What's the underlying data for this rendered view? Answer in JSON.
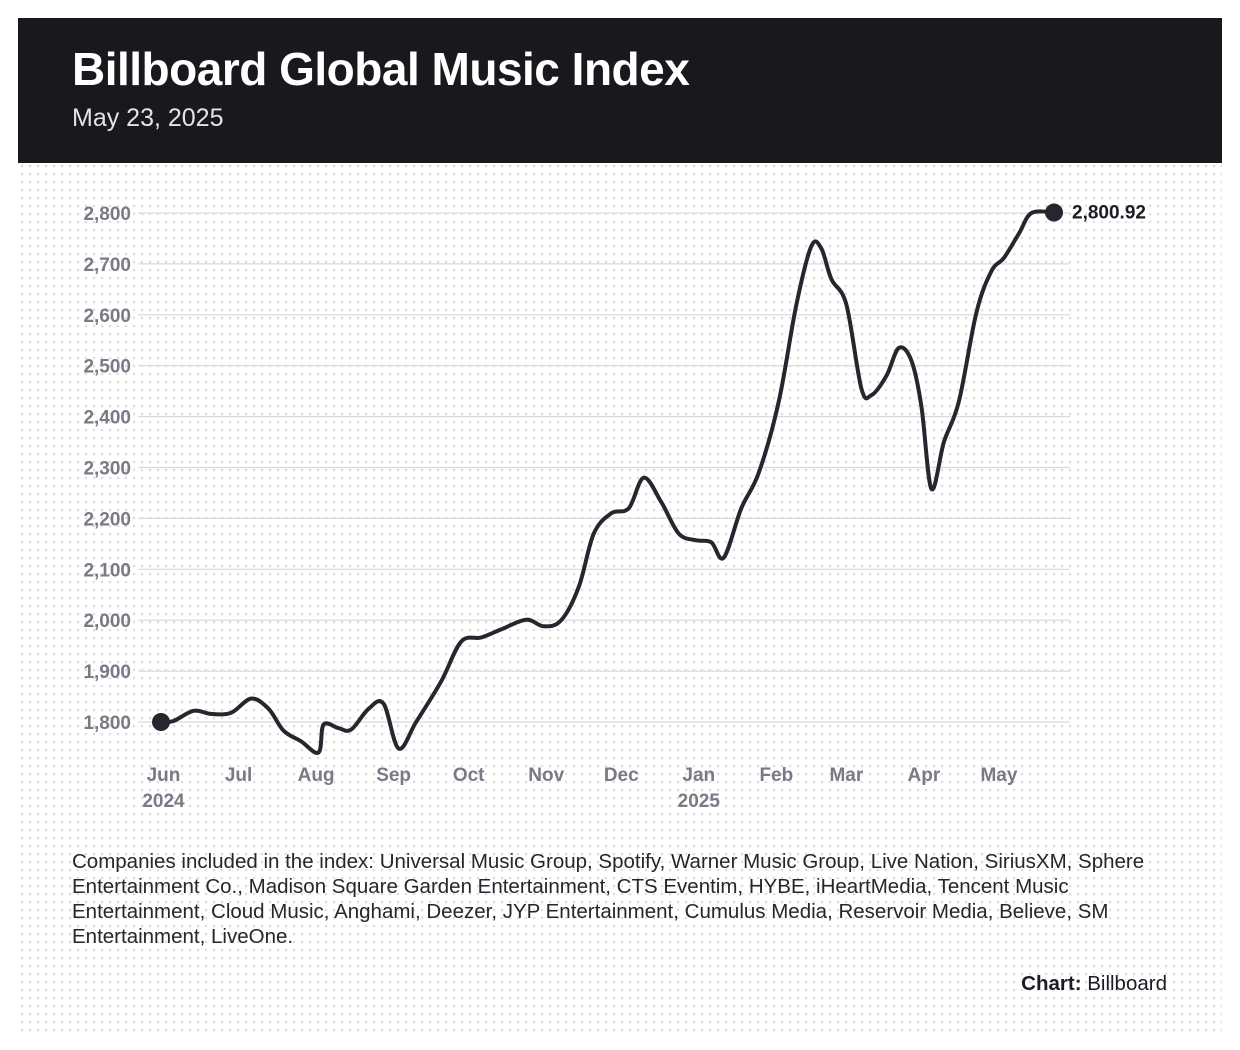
{
  "header": {
    "title": "Billboard Global Music Index",
    "subtitle": "May 23, 2025"
  },
  "footnote": "Companies included in the index: Universal Music Group, Spotify, Warner Music Group, Live Nation, SiriusXM, Sphere Entertainment Co., Madison Square Garden Entertainment, CTS Eventim, HYBE, iHeartMedia, Tencent Music Entertainment, Cloud Music, Anghami, Deezer, JYP Entertainment, Cumulus Media, Reservoir Media, Believe, SM Entertainment, LiveOne.",
  "credit": {
    "label": "Chart:",
    "source": "Billboard"
  },
  "chart_data": {
    "type": "line",
    "title": "Billboard Global Music Index",
    "subtitle": "May 23, 2025",
    "xlabel": "",
    "ylabel": "",
    "ylim": [
      1800,
      2800
    ],
    "yticks": [
      1800,
      1900,
      2000,
      2100,
      2200,
      2300,
      2400,
      2500,
      2600,
      2700,
      2800
    ],
    "ytick_labels": [
      "1,800",
      "1,900",
      "2,000",
      "2,100",
      "2,200",
      "2,300",
      "2,400",
      "2,500",
      "2,600",
      "2,700",
      "2,800"
    ],
    "xlim": [
      "2024-05-31",
      "2025-05-23"
    ],
    "xticks": [
      {
        "date": "2024-06-01",
        "label": "Jun",
        "year": "2024"
      },
      {
        "date": "2024-07-01",
        "label": "Jul",
        "year": ""
      },
      {
        "date": "2024-08-01",
        "label": "Aug",
        "year": ""
      },
      {
        "date": "2024-09-01",
        "label": "Sep",
        "year": ""
      },
      {
        "date": "2024-10-01",
        "label": "Oct",
        "year": ""
      },
      {
        "date": "2024-11-01",
        "label": "Nov",
        "year": ""
      },
      {
        "date": "2024-12-01",
        "label": "Dec",
        "year": ""
      },
      {
        "date": "2025-01-01",
        "label": "Jan",
        "year": "2025"
      },
      {
        "date": "2025-02-01",
        "label": "Feb",
        "year": ""
      },
      {
        "date": "2025-03-01",
        "label": "Mar",
        "year": ""
      },
      {
        "date": "2025-04-01",
        "label": "Apr",
        "year": ""
      },
      {
        "date": "2025-05-01",
        "label": "May",
        "year": ""
      }
    ],
    "grid": true,
    "series": [
      {
        "color": "#26262e",
        "start_value": 1800,
        "end_label": "2,800.92",
        "points": [
          {
            "x": "2024-05-31",
            "y": 1800
          },
          {
            "x": "2024-06-05",
            "y": 1802
          },
          {
            "x": "2024-06-13",
            "y": 1822
          },
          {
            "x": "2024-06-20",
            "y": 1816
          },
          {
            "x": "2024-06-28",
            "y": 1818
          },
          {
            "x": "2024-07-06",
            "y": 1846
          },
          {
            "x": "2024-07-13",
            "y": 1826
          },
          {
            "x": "2024-07-19",
            "y": 1783
          },
          {
            "x": "2024-07-26",
            "y": 1762
          },
          {
            "x": "2024-08-02",
            "y": 1740
          },
          {
            "x": "2024-08-04",
            "y": 1795
          },
          {
            "x": "2024-08-10",
            "y": 1788
          },
          {
            "x": "2024-08-15",
            "y": 1785
          },
          {
            "x": "2024-08-22",
            "y": 1826
          },
          {
            "x": "2024-08-28",
            "y": 1836
          },
          {
            "x": "2024-09-03",
            "y": 1748
          },
          {
            "x": "2024-09-10",
            "y": 1800
          },
          {
            "x": "2024-09-20",
            "y": 1880
          },
          {
            "x": "2024-09-28",
            "y": 1958
          },
          {
            "x": "2024-10-06",
            "y": 1966
          },
          {
            "x": "2024-10-14",
            "y": 1982
          },
          {
            "x": "2024-10-24",
            "y": 2001
          },
          {
            "x": "2024-10-31",
            "y": 1988
          },
          {
            "x": "2024-11-07",
            "y": 2000
          },
          {
            "x": "2024-11-14",
            "y": 2065
          },
          {
            "x": "2024-11-20",
            "y": 2170
          },
          {
            "x": "2024-11-27",
            "y": 2210
          },
          {
            "x": "2024-12-04",
            "y": 2220
          },
          {
            "x": "2024-12-10",
            "y": 2280
          },
          {
            "x": "2024-12-17",
            "y": 2232
          },
          {
            "x": "2024-12-24",
            "y": 2170
          },
          {
            "x": "2024-12-31",
            "y": 2157
          },
          {
            "x": "2025-01-06",
            "y": 2153
          },
          {
            "x": "2025-01-11",
            "y": 2123
          },
          {
            "x": "2025-01-18",
            "y": 2220
          },
          {
            "x": "2025-01-25",
            "y": 2290
          },
          {
            "x": "2025-02-02",
            "y": 2430
          },
          {
            "x": "2025-02-09",
            "y": 2620
          },
          {
            "x": "2025-02-15",
            "y": 2735
          },
          {
            "x": "2025-02-19",
            "y": 2730
          },
          {
            "x": "2025-02-23",
            "y": 2670
          },
          {
            "x": "2025-03-01",
            "y": 2620
          },
          {
            "x": "2025-03-07",
            "y": 2455
          },
          {
            "x": "2025-03-11",
            "y": 2442
          },
          {
            "x": "2025-03-17",
            "y": 2480
          },
          {
            "x": "2025-03-22",
            "y": 2535
          },
          {
            "x": "2025-03-27",
            "y": 2510
          },
          {
            "x": "2025-03-31",
            "y": 2420
          },
          {
            "x": "2025-04-04",
            "y": 2258
          },
          {
            "x": "2025-04-09",
            "y": 2350
          },
          {
            "x": "2025-04-15",
            "y": 2430
          },
          {
            "x": "2025-04-22",
            "y": 2605
          },
          {
            "x": "2025-04-28",
            "y": 2686
          },
          {
            "x": "2025-05-03",
            "y": 2712
          },
          {
            "x": "2025-05-09",
            "y": 2760
          },
          {
            "x": "2025-05-14",
            "y": 2800
          },
          {
            "x": "2025-05-23",
            "y": 2800.92
          }
        ]
      }
    ]
  }
}
